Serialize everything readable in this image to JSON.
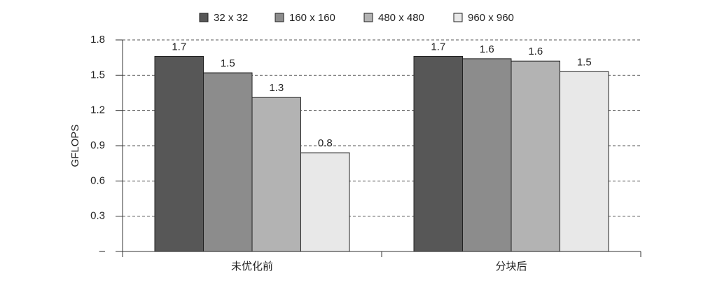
{
  "chart_data": {
    "type": "bar",
    "categories": [
      "未优化前",
      "分块后"
    ],
    "series": [
      {
        "name": "32 x 32",
        "color": "#575757",
        "values": [
          1.66,
          1.66
        ],
        "value_labels": [
          "1.7",
          "1.7"
        ]
      },
      {
        "name": "160 x 160",
        "color": "#8c8c8c",
        "values": [
          1.52,
          1.64
        ],
        "value_labels": [
          "1.5",
          "1.6"
        ]
      },
      {
        "name": "480 x 480",
        "color": "#b3b3b3",
        "values": [
          1.31,
          1.62
        ],
        "value_labels": [
          "1.3",
          "1.6"
        ]
      },
      {
        "name": "960 x 960",
        "color": "#e8e8e8",
        "values": [
          0.84,
          1.53
        ],
        "value_labels": [
          "0.8",
          "1.5"
        ]
      }
    ],
    "y_label": "GFLOPS",
    "ylim": [
      0,
      1.8
    ],
    "yticks": [
      {
        "value": 0,
        "label": "–"
      },
      0.3,
      0.6,
      0.9,
      1.2,
      1.5,
      1.8
    ],
    "grid": true
  }
}
